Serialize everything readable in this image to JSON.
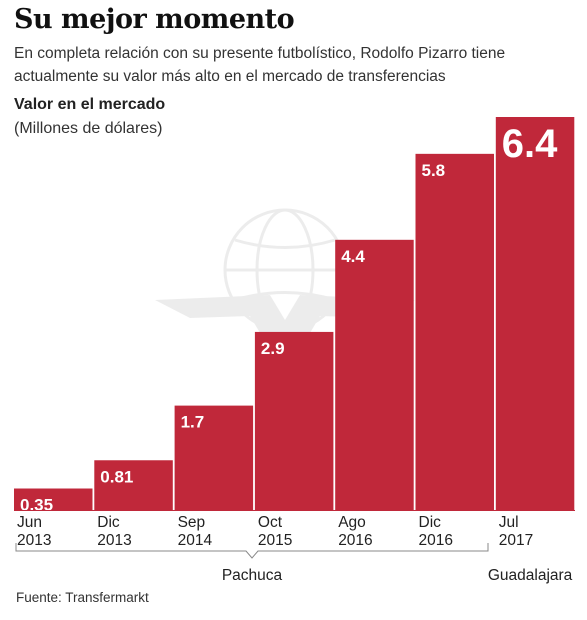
{
  "header": {
    "title": "Su mejor momento",
    "subtitle": "En completa relación con su presente futbolístico, Rodolfo Pizarro tiene actualmente su valor más alto en el mercado de transferencias"
  },
  "chart_data": {
    "type": "bar",
    "ylabel": "Valor en el mercado",
    "yunit": "(Millones de dólares)",
    "categories": [
      [
        "Jun",
        "2013"
      ],
      [
        "Dic",
        "2013"
      ],
      [
        "Sep",
        "2014"
      ],
      [
        "Oct",
        "2015"
      ],
      [
        "Ago",
        "2016"
      ],
      [
        "Dic",
        "2016"
      ],
      [
        "Jul",
        "2017"
      ]
    ],
    "values": [
      0.35,
      0.81,
      1.7,
      2.9,
      4.4,
      5.8,
      6.4
    ],
    "value_labels": [
      "0.35",
      "0.81",
      "1.7",
      "2.9",
      "4.4",
      "5.8",
      "6.4"
    ],
    "bar_color": "#c0283a",
    "ylim": [
      0,
      6.4
    ],
    "grid": false,
    "highlight_last": true,
    "groups": [
      {
        "label": "Pachuca",
        "from": 0,
        "to": 5
      },
      {
        "label": "Guadalajara",
        "from": 6,
        "to": 6
      }
    ]
  },
  "footer": {
    "source": "Fuente: Transfermarkt"
  }
}
